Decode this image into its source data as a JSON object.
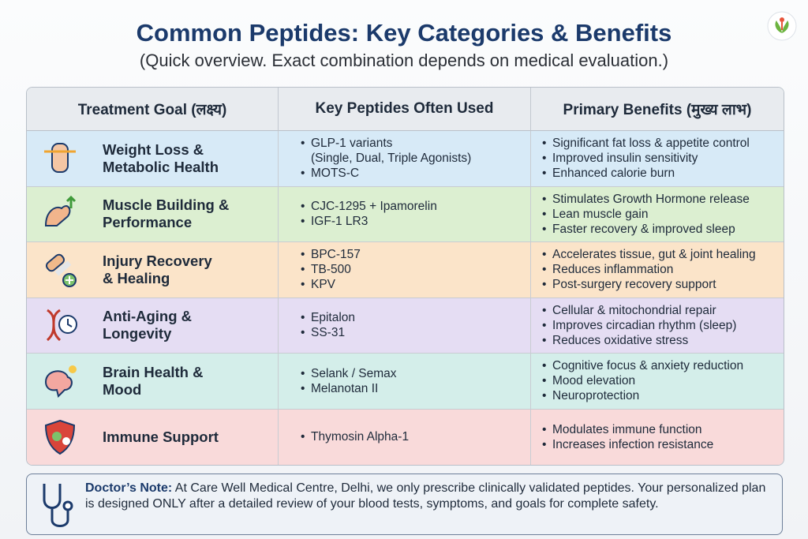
{
  "title": "Common Peptides: Key Categories & Benefits",
  "subtitle": "(Quick overview. Exact combination depends on medical evaluation.)",
  "table": {
    "headers": [
      "Treatment Goal (लक्ष्य)",
      "Key Peptides Often Used",
      "Primary Benefits (मुख्य लाभ)"
    ],
    "rows": [
      {
        "goal": "Weight Loss &\nMetabolic Health",
        "peptides": [
          "GLP-1 variants\n(Single, Dual, Triple Agonists)",
          "MOTS-C"
        ],
        "benefits": [
          "Significant fat loss & appetite control",
          "Improved insulin sensitivity",
          "Enhanced calorie burn"
        ]
      },
      {
        "goal": "Muscle Building &\nPerformance",
        "peptides": [
          "CJC-1295 + Ipamorelin",
          "IGF-1 LR3"
        ],
        "benefits": [
          "Stimulates Growth Hormone release",
          "Lean muscle gain",
          "Faster recovery & improved sleep"
        ]
      },
      {
        "goal": "Injury Recovery\n& Healing",
        "peptides": [
          "BPC-157",
          "TB-500",
          "KPV"
        ],
        "benefits": [
          "Accelerates tissue, gut & joint healing",
          "Reduces inflammation",
          "Post-surgery recovery support"
        ]
      },
      {
        "goal": "Anti-Aging &\nLongevity",
        "peptides": [
          "Epitalon",
          "SS-31"
        ],
        "benefits": [
          "Cellular & mitochondrial repair",
          "Improves circadian rhythm (sleep)",
          "Reduces oxidative stress"
        ]
      },
      {
        "goal": "Brain Health &\nMood",
        "peptides": [
          "Selank / Semax",
          "Melanotan II"
        ],
        "benefits": [
          "Cognitive focus & anxiety reduction",
          "Mood elevation",
          "Neuroprotection"
        ]
      },
      {
        "goal": "Immune Support",
        "peptides": [
          "Thymosin Alpha-1"
        ],
        "benefits": [
          "Modulates immune function",
          "Increases infection resistance"
        ]
      }
    ]
  },
  "note": {
    "label": "Doctor’s Note:",
    "text": "At Care Well Medical Centre, Delhi, we only prescribe clinically validated peptides. Your personalized plan is designed ONLY after a detailed review of your blood tests, symptoms, and goals for complete safety."
  }
}
